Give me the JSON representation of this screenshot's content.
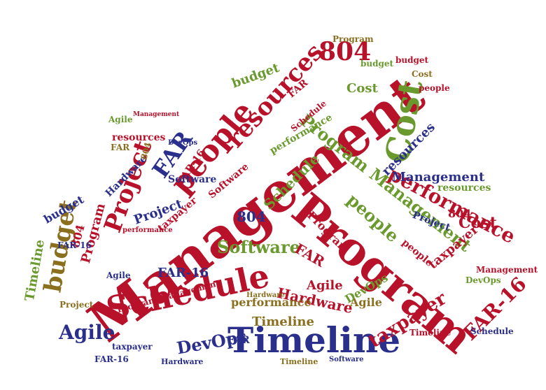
{
  "palette": {
    "red": "#b8112a",
    "navy": "#2b2f8c",
    "green": "#6a9a2e",
    "olive": "#8a6f1f",
    "background": "#ffffff"
  },
  "words": {
    "w01": "Management",
    "w02": "Program",
    "w03": "Schedule",
    "w04": "Timeline",
    "w05": "people",
    "w06": "resources",
    "w07": "Cost",
    "w08": "804",
    "w09": "Project",
    "w10": "FAR",
    "w11": "performance",
    "w12": "budget",
    "w13": "Agile",
    "w14": "Software",
    "w15": "FAR-16",
    "w16": "taxpayer",
    "w17": "DevOps",
    "w18": "Hardware",
    "w19": "people",
    "w20": "Program Management",
    "w21": "Management",
    "w22": "Cost",
    "w23": "Schedule",
    "w24": "resources",
    "w25": "804",
    "w26": "FAR-16",
    "w27": "budget",
    "w28": "Timeline",
    "w29": "Agile",
    "w30": "Hardware",
    "w31": "Program",
    "w32": "804",
    "w33": "FAR",
    "w34": "Project",
    "w35": "budget",
    "w36": "Timeline",
    "w37": "people",
    "w38": "performance",
    "w39": "Program",
    "w40": "taxpayer",
    "w41": "FAR-16",
    "w42": "Agile",
    "w43": "Software",
    "w44": "DevOps",
    "w45": "Cost",
    "w46": "Management",
    "w47": "Project",
    "w48": "FAR",
    "w49": "804",
    "w50": "taxpayer",
    "w51": "Hardware",
    "w52": "FAR-16",
    "w53": "Schedule",
    "w54": "resources",
    "w55": "performance",
    "w56": "Software",
    "w57": "DevOps",
    "w58": "Timeline",
    "w59": "budget",
    "w60": "Program Management",
    "w61": "Agile",
    "w62": "FAR",
    "w63": "804",
    "w64": "Cost",
    "w65": "people",
    "w66": "Schedule",
    "w67": "resources",
    "w68": "Management",
    "w69": "Hardware",
    "w70": "taxpayer",
    "w71": "FAR-16",
    "w72": "Timeline",
    "w73": "Project",
    "w74": "performance",
    "w75": "Agile",
    "w76": "budget",
    "w77": "Software",
    "w78": "DevOps",
    "w79": "Program",
    "w80": "FAR"
  }
}
